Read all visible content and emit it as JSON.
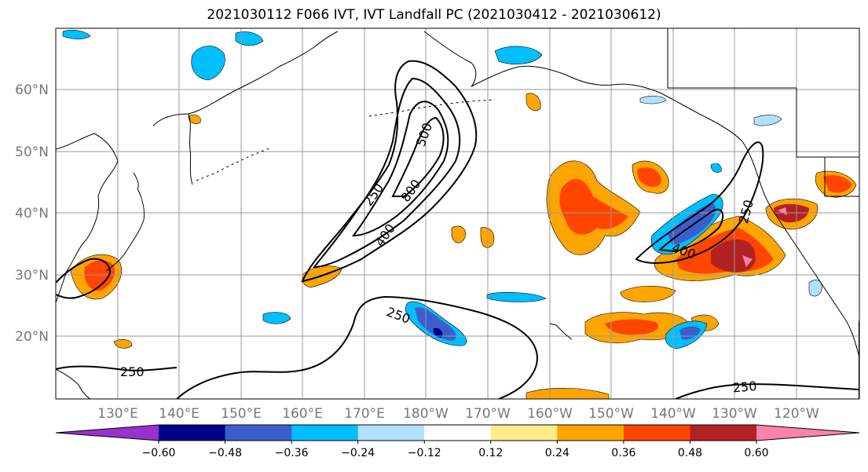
{
  "title": "2021030112 F066 IVT, IVT Landfall PC (2021030412 - 2021030612)",
  "lon_labels": [
    "130°E",
    "140°E",
    "150°E",
    "160°E",
    "170°E",
    "180°W",
    "170°W",
    "160°W",
    "150°W",
    "140°W",
    "130°W",
    "120°W"
  ],
  "lat_labels": [
    "60°N",
    "50°N",
    "40°N",
    "30°N",
    "20°N"
  ],
  "contour_labels": [
    "250",
    "400",
    "500",
    "800",
    "250",
    "250",
    "400",
    "250",
    "250"
  ],
  "colorbar": {
    "levels": [
      "-0.60",
      "-0.48",
      "-0.36",
      "-0.24",
      "-0.12",
      "0.12",
      "0.24",
      "0.36",
      "0.48",
      "0.60"
    ],
    "colors": [
      "#9932cc",
      "#00008b",
      "#3a5fcd",
      "#00bfff",
      "#b0e2ff",
      "#ffffff",
      "#ffec8b",
      "#ffa500",
      "#ff4500",
      "#b22222",
      "#ff82ab"
    ]
  },
  "colors": {
    "grid": "#999999",
    "coast": "#000000",
    "contour": "#000000"
  }
}
